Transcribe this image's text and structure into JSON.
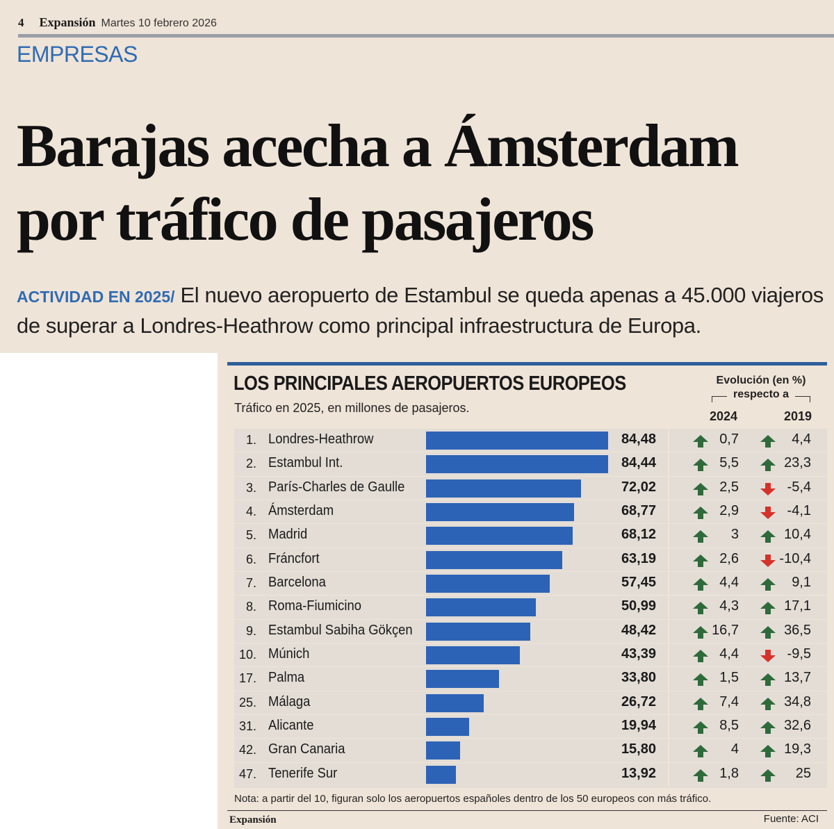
{
  "page": {
    "page_number": "4",
    "brand": "Expansión",
    "date": "Martes 10 febrero 2026",
    "section": "EMPRESAS"
  },
  "article": {
    "headline_line1": "Barajas acecha a Ámsterdam",
    "headline_line2": "por tráfico de pasajeros",
    "kicker": "ACTIVIDAD EN 2025/",
    "dek": "El nuevo aeropuerto de Estambul se queda apenas a 45.000 viajeros de superar a Londres-Heathrow como principal infraestructura de Europa."
  },
  "chart_data": {
    "type": "bar",
    "title": "LOS PRINCIPALES AEROPUERTOS EUROPEOS",
    "subtitle": "Tráfico en 2025, en millones de pasajeros.",
    "evolution_header": "Evolución (en %)",
    "evolution_sub": "respecto a",
    "year_cols": [
      "2024",
      "2019"
    ],
    "rows": [
      {
        "rank": "1.",
        "airport": "Londres-Heathrow",
        "value": 84.48,
        "label": "84,48",
        "chg2024": "0,7",
        "up2024": true,
        "chg2019": "4,4",
        "up2019": true
      },
      {
        "rank": "2.",
        "airport": "Estambul Int.",
        "value": 84.44,
        "label": "84,44",
        "chg2024": "5,5",
        "up2024": true,
        "chg2019": "23,3",
        "up2019": true
      },
      {
        "rank": "3.",
        "airport": "París-Charles de Gaulle",
        "value": 72.02,
        "label": "72,02",
        "chg2024": "2,5",
        "up2024": true,
        "chg2019": "-5,4",
        "up2019": false
      },
      {
        "rank": "4.",
        "airport": "Ámsterdam",
        "value": 68.77,
        "label": "68,77",
        "chg2024": "2,9",
        "up2024": true,
        "chg2019": "-4,1",
        "up2019": false
      },
      {
        "rank": "5.",
        "airport": "Madrid",
        "value": 68.12,
        "label": "68,12",
        "chg2024": "3",
        "up2024": true,
        "chg2019": "10,4",
        "up2019": true
      },
      {
        "rank": "6.",
        "airport": "Fráncfort",
        "value": 63.19,
        "label": "63,19",
        "chg2024": "2,6",
        "up2024": true,
        "chg2019": "-10,4",
        "up2019": false
      },
      {
        "rank": "7.",
        "airport": "Barcelona",
        "value": 57.45,
        "label": "57,45",
        "chg2024": "4,4",
        "up2024": true,
        "chg2019": "9,1",
        "up2019": true
      },
      {
        "rank": "8.",
        "airport": "Roma-Fiumicino",
        "value": 50.99,
        "label": "50,99",
        "chg2024": "4,3",
        "up2024": true,
        "chg2019": "17,1",
        "up2019": true
      },
      {
        "rank": "9.",
        "airport": "Estambul Sabiha Gökçen",
        "value": 48.42,
        "label": "48,42",
        "chg2024": "16,7",
        "up2024": true,
        "chg2019": "36,5",
        "up2019": true
      },
      {
        "rank": "10.",
        "airport": "Múnich",
        "value": 43.39,
        "label": "43,39",
        "chg2024": "4,4",
        "up2024": true,
        "chg2019": "-9,5",
        "up2019": false
      },
      {
        "rank": "17.",
        "airport": "Palma",
        "value": 33.8,
        "label": "33,80",
        "chg2024": "1,5",
        "up2024": true,
        "chg2019": "13,7",
        "up2019": true
      },
      {
        "rank": "25.",
        "airport": "Málaga",
        "value": 26.72,
        "label": "26,72",
        "chg2024": "7,4",
        "up2024": true,
        "chg2019": "34,8",
        "up2019": true
      },
      {
        "rank": "31.",
        "airport": "Alicante",
        "value": 19.94,
        "label": "19,94",
        "chg2024": "8,5",
        "up2024": true,
        "chg2019": "32,6",
        "up2019": true
      },
      {
        "rank": "42.",
        "airport": "Gran Canaria",
        "value": 15.8,
        "label": "15,80",
        "chg2024": "4",
        "up2024": true,
        "chg2019": "19,3",
        "up2019": true
      },
      {
        "rank": "47.",
        "airport": "Tenerife Sur",
        "value": 13.92,
        "label": "13,92",
        "chg2024": "1,8",
        "up2024": true,
        "chg2019": "25",
        "up2019": true
      }
    ],
    "note": "Nota: a partir del 10, figuran solo los aeropuertos españoles dentro de los 50 europeos con más tráfico.",
    "footer_brand": "Expansión",
    "source": "Fuente: ACI",
    "colors": {
      "bar": "#2d63b6",
      "up": "#2f6b3a",
      "down": "#d6322b"
    }
  }
}
